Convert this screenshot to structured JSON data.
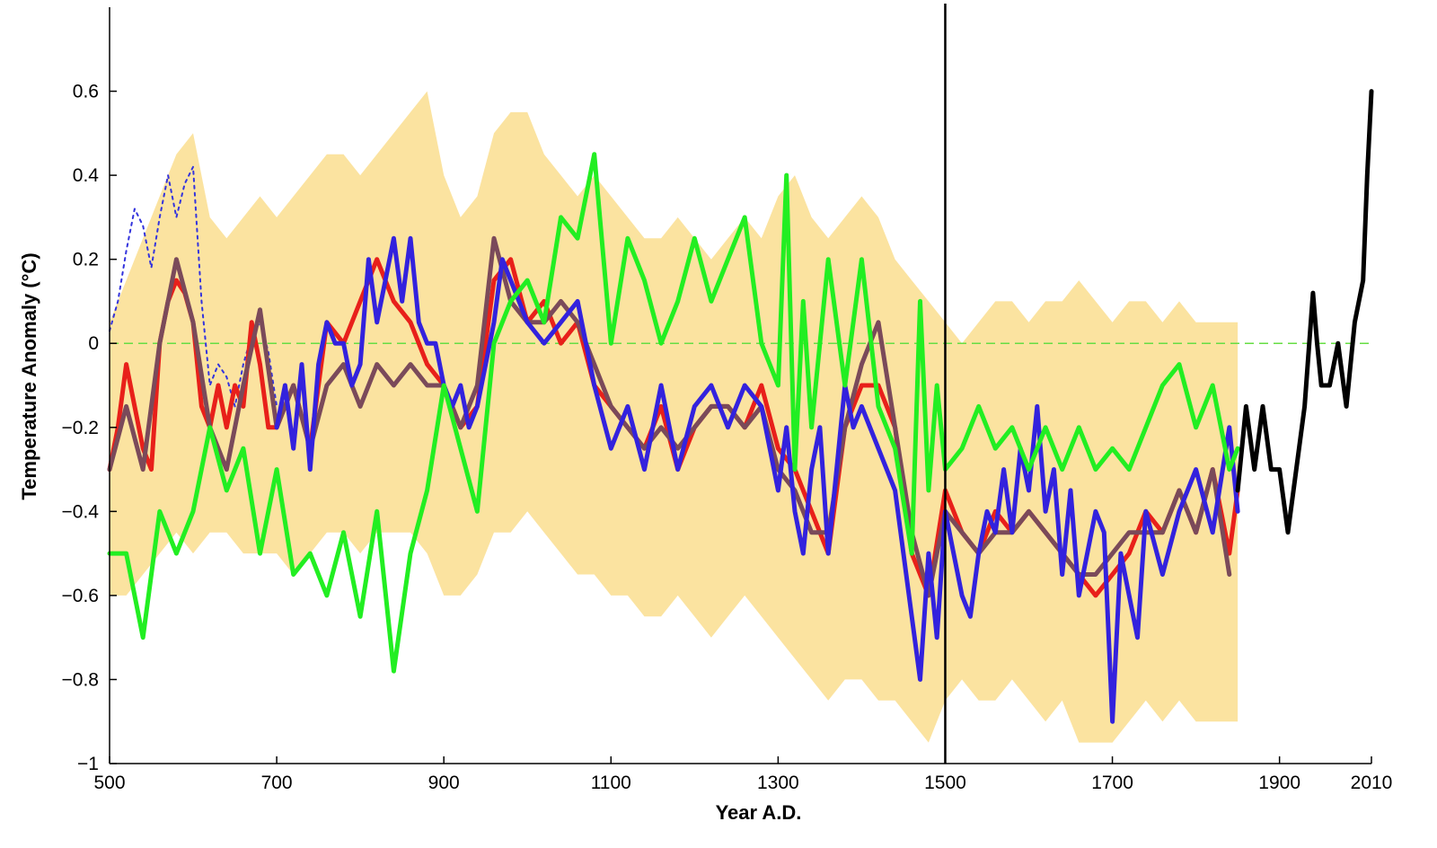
{
  "chart_data": {
    "type": "line",
    "title": "",
    "xlabel": "Year A.D.",
    "ylabel": "Temperature Anomaly (°C)",
    "xlim": [
      500,
      2010
    ],
    "ylim": [
      -1,
      0.8
    ],
    "x_ticks": [
      500,
      700,
      900,
      1100,
      1300,
      1500,
      1700,
      1900,
      2010
    ],
    "y_ticks": [
      -1,
      -0.8,
      -0.6,
      -0.4,
      -0.2,
      0,
      0.2,
      0.4,
      0.6
    ],
    "y_tick_labels": [
      "−1",
      "−0.8",
      "−0.6",
      "−0.4",
      "−0.2",
      "0",
      "0.2",
      "0.4",
      "0.6"
    ],
    "zero_line": 0,
    "vertical_marker": 1500,
    "band": {
      "name": "uncertainty-range",
      "color": "#fbe3a0",
      "x": [
        500,
        520,
        540,
        560,
        580,
        600,
        620,
        640,
        660,
        680,
        700,
        720,
        740,
        760,
        780,
        800,
        820,
        840,
        860,
        880,
        900,
        920,
        940,
        960,
        980,
        1000,
        1020,
        1040,
        1060,
        1080,
        1100,
        1120,
        1140,
        1160,
        1180,
        1200,
        1220,
        1240,
        1260,
        1280,
        1300,
        1320,
        1340,
        1360,
        1380,
        1400,
        1420,
        1440,
        1460,
        1480,
        1500,
        1520,
        1540,
        1560,
        1580,
        1600,
        1620,
        1640,
        1660,
        1680,
        1700,
        1720,
        1740,
        1760,
        1780,
        1800,
        1820,
        1840,
        1850
      ],
      "upper": [
        0.05,
        0.15,
        0.25,
        0.35,
        0.45,
        0.5,
        0.3,
        0.25,
        0.3,
        0.35,
        0.3,
        0.35,
        0.4,
        0.45,
        0.45,
        0.4,
        0.45,
        0.5,
        0.55,
        0.6,
        0.4,
        0.3,
        0.35,
        0.5,
        0.55,
        0.55,
        0.45,
        0.4,
        0.35,
        0.4,
        0.35,
        0.3,
        0.25,
        0.25,
        0.3,
        0.25,
        0.2,
        0.25,
        0.3,
        0.25,
        0.35,
        0.4,
        0.3,
        0.25,
        0.3,
        0.35,
        0.3,
        0.2,
        0.15,
        0.1,
        0.05,
        0.0,
        0.05,
        0.1,
        0.1,
        0.05,
        0.1,
        0.1,
        0.15,
        0.1,
        0.05,
        0.1,
        0.1,
        0.05,
        0.1,
        0.05,
        0.05,
        0.05,
        0.05
      ],
      "lower": [
        -0.6,
        -0.6,
        -0.55,
        -0.5,
        -0.45,
        -0.5,
        -0.45,
        -0.45,
        -0.5,
        -0.5,
        -0.5,
        -0.55,
        -0.5,
        -0.45,
        -0.45,
        -0.5,
        -0.45,
        -0.45,
        -0.45,
        -0.5,
        -0.6,
        -0.6,
        -0.55,
        -0.45,
        -0.45,
        -0.4,
        -0.45,
        -0.5,
        -0.55,
        -0.55,
        -0.6,
        -0.6,
        -0.65,
        -0.65,
        -0.6,
        -0.65,
        -0.7,
        -0.65,
        -0.6,
        -0.65,
        -0.7,
        -0.75,
        -0.8,
        -0.85,
        -0.8,
        -0.8,
        -0.85,
        -0.85,
        -0.9,
        -0.95,
        -0.85,
        -0.8,
        -0.85,
        -0.85,
        -0.8,
        -0.85,
        -0.9,
        -0.85,
        -0.95,
        -0.95,
        -0.95,
        -0.9,
        -0.85,
        -0.9,
        -0.85,
        -0.9,
        -0.9,
        -0.9,
        -0.9
      ]
    },
    "series": [
      {
        "name": "blue-dotted",
        "color": "#3333dd",
        "style": "dotted",
        "x": [
          500,
          510,
          520,
          530,
          540,
          550,
          560,
          570,
          580,
          590,
          600,
          610,
          620,
          630,
          640,
          650,
          660,
          670,
          680,
          690,
          700
        ],
        "values": [
          0.03,
          0.1,
          0.22,
          0.32,
          0.28,
          0.18,
          0.3,
          0.4,
          0.3,
          0.38,
          0.42,
          0.1,
          -0.1,
          -0.05,
          -0.08,
          -0.15,
          -0.05,
          0.02,
          0.05,
          -0.02,
          -0.15
        ]
      },
      {
        "name": "red",
        "color": "#e8201a",
        "style": "solid",
        "x": [
          500,
          510,
          520,
          530,
          540,
          550,
          560,
          570,
          580,
          590,
          600,
          610,
          620,
          630,
          640,
          650,
          660,
          670,
          680,
          690,
          700,
          720,
          740,
          760,
          780,
          800,
          820,
          840,
          860,
          880,
          900,
          920,
          940,
          960,
          980,
          1000,
          1020,
          1040,
          1060,
          1080,
          1100,
          1120,
          1140,
          1160,
          1180,
          1200,
          1220,
          1240,
          1260,
          1280,
          1300,
          1320,
          1340,
          1360,
          1380,
          1400,
          1420,
          1440,
          1460,
          1480,
          1500,
          1520,
          1540,
          1560,
          1580,
          1600,
          1620,
          1640,
          1660,
          1680,
          1700,
          1720,
          1740,
          1760,
          1780,
          1800,
          1820,
          1840,
          1850
        ],
        "values": [
          -0.3,
          -0.2,
          -0.05,
          -0.15,
          -0.25,
          -0.3,
          0.0,
          0.1,
          0.15,
          0.12,
          0.05,
          -0.15,
          -0.2,
          -0.1,
          -0.2,
          -0.1,
          -0.15,
          0.05,
          -0.05,
          -0.2,
          -0.2,
          -0.1,
          -0.25,
          0.05,
          0.0,
          0.1,
          0.2,
          0.1,
          0.05,
          -0.05,
          -0.1,
          -0.2,
          -0.15,
          0.15,
          0.2,
          0.05,
          0.1,
          0.0,
          0.05,
          -0.1,
          -0.15,
          -0.2,
          -0.25,
          -0.15,
          -0.3,
          -0.2,
          -0.15,
          -0.15,
          -0.2,
          -0.1,
          -0.25,
          -0.3,
          -0.4,
          -0.5,
          -0.2,
          -0.1,
          -0.1,
          -0.2,
          -0.5,
          -0.6,
          -0.35,
          -0.45,
          -0.5,
          -0.4,
          -0.45,
          -0.4,
          -0.45,
          -0.5,
          -0.55,
          -0.6,
          -0.55,
          -0.5,
          -0.4,
          -0.45,
          -0.35,
          -0.45,
          -0.3,
          -0.5,
          -0.35
        ]
      },
      {
        "name": "brown",
        "color": "#7a4a5a",
        "style": "solid",
        "x": [
          500,
          520,
          540,
          560,
          580,
          600,
          620,
          640,
          660,
          680,
          700,
          720,
          740,
          760,
          780,
          800,
          820,
          840,
          860,
          880,
          900,
          920,
          940,
          960,
          980,
          1000,
          1020,
          1040,
          1060,
          1080,
          1100,
          1120,
          1140,
          1160,
          1180,
          1200,
          1220,
          1240,
          1260,
          1280,
          1300,
          1320,
          1340,
          1360,
          1380,
          1400,
          1420,
          1440,
          1460,
          1480,
          1500,
          1520,
          1540,
          1560,
          1580,
          1600,
          1620,
          1640,
          1660,
          1680,
          1700,
          1720,
          1740,
          1760,
          1780,
          1800,
          1820,
          1840
        ],
        "values": [
          -0.3,
          -0.15,
          -0.3,
          0.0,
          0.2,
          0.05,
          -0.2,
          -0.3,
          -0.1,
          0.08,
          -0.2,
          -0.1,
          -0.25,
          -0.1,
          -0.05,
          -0.15,
          -0.05,
          -0.1,
          -0.05,
          -0.1,
          -0.1,
          -0.2,
          -0.1,
          0.25,
          0.1,
          0.05,
          0.05,
          0.1,
          0.05,
          -0.05,
          -0.15,
          -0.2,
          -0.25,
          -0.2,
          -0.25,
          -0.2,
          -0.15,
          -0.15,
          -0.2,
          -0.15,
          -0.3,
          -0.35,
          -0.45,
          -0.45,
          -0.2,
          -0.05,
          0.05,
          -0.2,
          -0.45,
          -0.6,
          -0.4,
          -0.45,
          -0.5,
          -0.45,
          -0.45,
          -0.4,
          -0.45,
          -0.5,
          -0.55,
          -0.55,
          -0.5,
          -0.45,
          -0.45,
          -0.45,
          -0.35,
          -0.45,
          -0.3,
          -0.55
        ]
      },
      {
        "name": "blue",
        "color": "#3322dd",
        "style": "solid",
        "x": [
          700,
          710,
          720,
          730,
          740,
          750,
          760,
          770,
          780,
          790,
          800,
          810,
          820,
          830,
          840,
          850,
          860,
          870,
          880,
          890,
          900,
          910,
          920,
          930,
          940,
          950,
          960,
          970,
          980,
          990,
          1000,
          1020,
          1040,
          1060,
          1080,
          1100,
          1120,
          1140,
          1160,
          1180,
          1200,
          1220,
          1240,
          1260,
          1280,
          1300,
          1310,
          1320,
          1330,
          1340,
          1350,
          1360,
          1370,
          1380,
          1390,
          1400,
          1420,
          1440,
          1450,
          1460,
          1470,
          1480,
          1490,
          1500,
          1510,
          1520,
          1530,
          1540,
          1550,
          1560,
          1570,
          1580,
          1590,
          1600,
          1610,
          1620,
          1630,
          1640,
          1650,
          1660,
          1670,
          1680,
          1690,
          1700,
          1710,
          1720,
          1730,
          1740,
          1760,
          1780,
          1800,
          1820,
          1840,
          1850
        ],
        "values": [
          -0.2,
          -0.1,
          -0.25,
          -0.05,
          -0.3,
          -0.05,
          0.05,
          0.0,
          0.0,
          -0.1,
          -0.05,
          0.2,
          0.05,
          0.15,
          0.25,
          0.1,
          0.25,
          0.05,
          0.0,
          0.0,
          -0.1,
          -0.15,
          -0.1,
          -0.2,
          -0.15,
          -0.05,
          0.05,
          0.2,
          0.15,
          0.1,
          0.05,
          0.0,
          0.05,
          0.1,
          -0.1,
          -0.25,
          -0.15,
          -0.3,
          -0.1,
          -0.3,
          -0.15,
          -0.1,
          -0.2,
          -0.1,
          -0.15,
          -0.35,
          -0.2,
          -0.4,
          -0.5,
          -0.3,
          -0.2,
          -0.5,
          -0.3,
          -0.1,
          -0.2,
          -0.15,
          -0.25,
          -0.35,
          -0.5,
          -0.65,
          -0.8,
          -0.5,
          -0.7,
          -0.4,
          -0.5,
          -0.6,
          -0.65,
          -0.5,
          -0.4,
          -0.45,
          -0.3,
          -0.45,
          -0.25,
          -0.35,
          -0.15,
          -0.4,
          -0.3,
          -0.55,
          -0.35,
          -0.6,
          -0.5,
          -0.4,
          -0.45,
          -0.9,
          -0.5,
          -0.6,
          -0.7,
          -0.4,
          -0.55,
          -0.4,
          -0.3,
          -0.45,
          -0.2,
          -0.4
        ]
      },
      {
        "name": "green",
        "color": "#22ee22",
        "style": "solid",
        "x": [
          500,
          520,
          540,
          560,
          580,
          600,
          620,
          640,
          660,
          680,
          700,
          720,
          740,
          760,
          780,
          800,
          820,
          840,
          860,
          880,
          900,
          920,
          940,
          960,
          980,
          1000,
          1020,
          1040,
          1060,
          1080,
          1100,
          1120,
          1140,
          1160,
          1180,
          1200,
          1220,
          1240,
          1260,
          1280,
          1300,
          1310,
          1320,
          1330,
          1340,
          1360,
          1380,
          1400,
          1420,
          1440,
          1460,
          1470,
          1480,
          1490,
          1500,
          1520,
          1540,
          1560,
          1580,
          1600,
          1620,
          1640,
          1660,
          1680,
          1700,
          1720,
          1740,
          1760,
          1780,
          1800,
          1820,
          1840,
          1850
        ],
        "values": [
          -0.5,
          -0.5,
          -0.7,
          -0.4,
          -0.5,
          -0.4,
          -0.2,
          -0.35,
          -0.25,
          -0.5,
          -0.3,
          -0.55,
          -0.5,
          -0.6,
          -0.45,
          -0.65,
          -0.4,
          -0.78,
          -0.5,
          -0.35,
          -0.1,
          -0.25,
          -0.4,
          0.0,
          0.1,
          0.15,
          0.05,
          0.3,
          0.25,
          0.45,
          0.0,
          0.25,
          0.15,
          0.0,
          0.1,
          0.25,
          0.1,
          0.2,
          0.3,
          0.0,
          -0.1,
          0.4,
          -0.3,
          0.1,
          -0.2,
          0.2,
          -0.1,
          0.2,
          -0.15,
          -0.25,
          -0.5,
          0.1,
          -0.35,
          -0.1,
          -0.3,
          -0.25,
          -0.15,
          -0.25,
          -0.2,
          -0.3,
          -0.2,
          -0.3,
          -0.2,
          -0.3,
          -0.25,
          -0.3,
          -0.2,
          -0.1,
          -0.05,
          -0.2,
          -0.1,
          -0.3,
          -0.25
        ]
      },
      {
        "name": "black",
        "color": "#000000",
        "style": "solid",
        "x": [
          1850,
          1860,
          1870,
          1880,
          1890,
          1900,
          1910,
          1920,
          1930,
          1940,
          1945,
          1950,
          1960,
          1970,
          1980,
          1990,
          2000,
          2005,
          2010
        ],
        "values": [
          -0.35,
          -0.15,
          -0.3,
          -0.15,
          -0.3,
          -0.3,
          -0.45,
          -0.3,
          -0.15,
          0.12,
          0.0,
          -0.1,
          -0.1,
          0.0,
          -0.15,
          0.05,
          0.15,
          0.4,
          0.6
        ]
      }
    ]
  }
}
